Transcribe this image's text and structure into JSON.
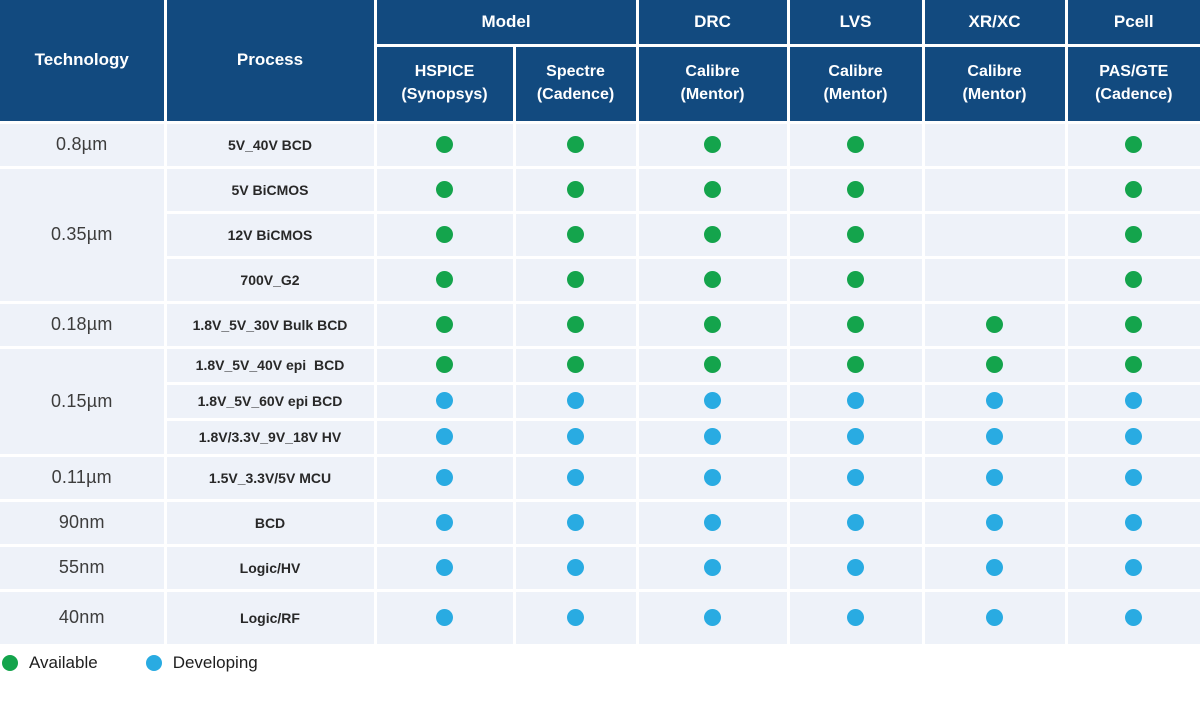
{
  "colors": {
    "header_bg": "#124a7f",
    "cell_bg": "#eef2f9",
    "available": "#14a44c",
    "developing": "#29abe2"
  },
  "header": {
    "technology": "Technology",
    "process": "Process",
    "groups": [
      {
        "label": "Model"
      },
      {
        "label": "DRC"
      },
      {
        "label": "LVS"
      },
      {
        "label": "XR/XC"
      },
      {
        "label": "Pcell"
      }
    ],
    "tools": [
      {
        "line1": "HSPICE",
        "line2": "(Synopsys)"
      },
      {
        "line1": "Spectre",
        "line2": "(Cadence)"
      },
      {
        "line1": "Calibre",
        "line2": "(Mentor)"
      },
      {
        "line1": "Calibre",
        "line2": "(Mentor)"
      },
      {
        "line1": "Calibre",
        "line2": "(Mentor)"
      },
      {
        "line1": "PAS/GTE",
        "line2": "(Cadence)"
      }
    ]
  },
  "table": {
    "groups": [
      {
        "technology": "0.8µm",
        "rows": [
          {
            "process": "5V_40V BCD",
            "status": [
              "available",
              "available",
              "available",
              "available",
              null,
              "available"
            ]
          }
        ]
      },
      {
        "technology": "0.35µm",
        "rows": [
          {
            "process": "5V BiCMOS",
            "status": [
              "available",
              "available",
              "available",
              "available",
              null,
              "available"
            ]
          },
          {
            "process": "12V BiCMOS",
            "status": [
              "available",
              "available",
              "available",
              "available",
              null,
              "available"
            ]
          },
          {
            "process": "700V_G2",
            "status": [
              "available",
              "available",
              "available",
              "available",
              null,
              "available"
            ]
          }
        ]
      },
      {
        "technology": "0.18µm",
        "rows": [
          {
            "process": "1.8V_5V_30V Bulk BCD",
            "status": [
              "available",
              "available",
              "available",
              "available",
              "available",
              "available"
            ]
          }
        ]
      },
      {
        "technology": "0.15µm",
        "rows": [
          {
            "process": "1.8V_5V_40V epi  BCD",
            "status": [
              "available",
              "available",
              "available",
              "available",
              "available",
              "available"
            ]
          },
          {
            "process": "1.8V_5V_60V epi BCD",
            "status": [
              "developing",
              "developing",
              "developing",
              "developing",
              "developing",
              "developing"
            ]
          },
          {
            "process": "1.8V/3.3V_9V_18V HV",
            "status": [
              "developing",
              "developing",
              "developing",
              "developing",
              "developing",
              "developing"
            ]
          }
        ]
      },
      {
        "technology": "0.11µm",
        "rows": [
          {
            "process": "1.5V_3.3V/5V MCU",
            "status": [
              "developing",
              "developing",
              "developing",
              "developing",
              "developing",
              "developing"
            ]
          }
        ]
      },
      {
        "technology": "90nm",
        "rows": [
          {
            "process": "BCD",
            "status": [
              "developing",
              "developing",
              "developing",
              "developing",
              "developing",
              "developing"
            ]
          }
        ]
      },
      {
        "technology": "55nm",
        "rows": [
          {
            "process": "Logic/HV",
            "status": [
              "developing",
              "developing",
              "developing",
              "developing",
              "developing",
              "developing"
            ]
          }
        ]
      },
      {
        "technology": "40nm",
        "rows": [
          {
            "process": "Logic/RF",
            "status": [
              "developing",
              "developing",
              "developing",
              "developing",
              "developing",
              "developing"
            ]
          }
        ]
      }
    ]
  },
  "legend": {
    "items": [
      {
        "status": "available",
        "label": "Available"
      },
      {
        "status": "developing",
        "label": "Developing"
      }
    ]
  }
}
